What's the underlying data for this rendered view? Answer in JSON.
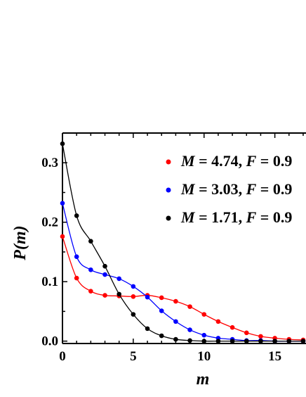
{
  "chart_data": {
    "type": "line",
    "title": "",
    "xlabel": "m",
    "ylabel": "P(m)",
    "xlim": [
      0,
      17.2
    ],
    "ylim": [
      -0.004,
      0.35
    ],
    "x_ticks": [
      0,
      5,
      10,
      15
    ],
    "x_tick_labels": [
      "0",
      "5",
      "10",
      "15"
    ],
    "y_ticks": [
      0.0,
      0.1,
      0.2,
      0.3
    ],
    "y_tick_labels": [
      "0.0",
      "0.1",
      "0.2",
      "0.3"
    ],
    "grid": false,
    "legend_position": "top-right",
    "series": [
      {
        "name": "M = 4.74, F = 0.9",
        "legend_m": "4.74",
        "legend_f": "0.9",
        "color": "#ff0000",
        "x": [
          0,
          1,
          2,
          3,
          4,
          5,
          6,
          7,
          8,
          9,
          10,
          11,
          12,
          13,
          14,
          15,
          16,
          17
        ],
        "y": [
          0.176,
          0.106,
          0.084,
          0.077,
          0.076,
          0.075,
          0.077,
          0.073,
          0.067,
          0.058,
          0.045,
          0.033,
          0.023,
          0.014,
          0.008,
          0.005,
          0.003,
          0.002
        ]
      },
      {
        "name": "M = 3.03, F = 0.9",
        "legend_m": "3.03",
        "legend_f": "0.9",
        "color": "#0000ff",
        "x": [
          0,
          1,
          2,
          3,
          4,
          5,
          6,
          7,
          8,
          9,
          10,
          11,
          12,
          13,
          14,
          15,
          16,
          17
        ],
        "y": [
          0.232,
          0.142,
          0.12,
          0.112,
          0.105,
          0.092,
          0.074,
          0.051,
          0.033,
          0.019,
          0.01,
          0.005,
          0.003,
          0.001,
          0.001,
          0.0,
          0.0,
          0.0
        ]
      },
      {
        "name": "M = 1.71, F = 0.9",
        "legend_m": "1.71",
        "legend_f": "0.9",
        "color": "#000000",
        "x": [
          0,
          1,
          2,
          3,
          4,
          5,
          6,
          7,
          8,
          9,
          10,
          11,
          12,
          13,
          14,
          15,
          16,
          17
        ],
        "y": [
          0.332,
          0.211,
          0.168,
          0.126,
          0.079,
          0.045,
          0.021,
          0.009,
          0.003,
          0.001,
          0.0,
          0.0,
          0.0,
          0.0,
          0.0,
          0.0,
          0.0,
          0.0
        ]
      }
    ]
  }
}
